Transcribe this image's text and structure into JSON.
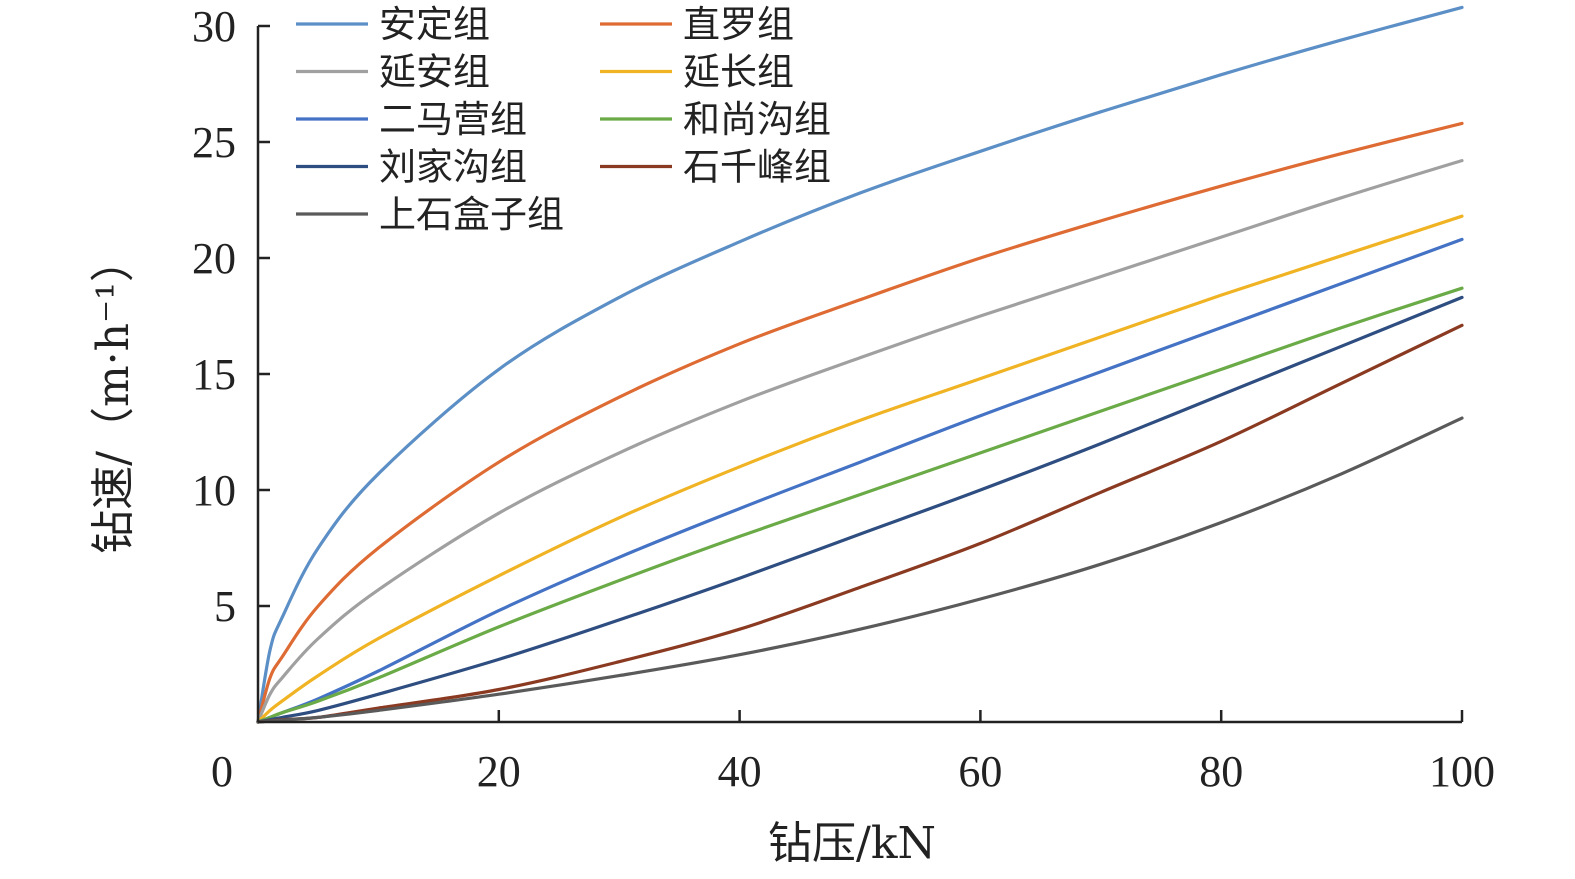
{
  "chart_data": {
    "type": "line",
    "xlabel": "钻压/kN",
    "ylabel": "钻速/（m·h⁻¹）",
    "xlim": [
      0,
      100
    ],
    "ylim": [
      0,
      30
    ],
    "x_ticks": [
      "0",
      "20",
      "40",
      "60",
      "80",
      "100"
    ],
    "y_ticks": [
      "5",
      "10",
      "15",
      "20",
      "25",
      "30"
    ],
    "grid": false,
    "legend_position": "top-left",
    "x": [
      0,
      1,
      2,
      5,
      10,
      20,
      30,
      40,
      50,
      60,
      70,
      80,
      90,
      100
    ],
    "series": [
      {
        "name": "安定组",
        "color": "#5b8fc6",
        "values": [
          0,
          3.1,
          4.5,
          7.5,
          10.7,
          15.2,
          18.3,
          20.7,
          22.8,
          24.6,
          26.3,
          27.9,
          29.4,
          30.8
        ]
      },
      {
        "name": "直罗组",
        "color": "#de6b33",
        "values": [
          0,
          1.9,
          2.8,
          5.0,
          7.5,
          11.2,
          14.0,
          16.3,
          18.2,
          20.0,
          21.6,
          23.1,
          24.5,
          25.8
        ]
      },
      {
        "name": "延安组",
        "color": "#a0a0a0",
        "values": [
          0,
          1.2,
          1.9,
          3.6,
          5.7,
          9.0,
          11.6,
          13.8,
          15.7,
          17.5,
          19.2,
          20.9,
          22.6,
          24.2
        ]
      },
      {
        "name": "延长组",
        "color": "#f0b323",
        "values": [
          0,
          0.5,
          0.9,
          2.0,
          3.6,
          6.3,
          8.8,
          11.0,
          13.0,
          14.8,
          16.6,
          18.4,
          20.1,
          21.8
        ]
      },
      {
        "name": "二马营组",
        "color": "#4472c4",
        "values": [
          0,
          0.2,
          0.4,
          1.0,
          2.2,
          4.8,
          7.1,
          9.2,
          11.2,
          13.2,
          15.1,
          17.0,
          18.9,
          20.8
        ]
      },
      {
        "name": "和尚沟组",
        "color": "#6aaa47",
        "values": [
          0,
          0.2,
          0.4,
          0.9,
          1.9,
          4.1,
          6.1,
          8.0,
          9.8,
          11.6,
          13.4,
          15.2,
          17.0,
          18.7
        ]
      },
      {
        "name": "刘家沟组",
        "color": "#2e4d80",
        "values": [
          0,
          0.1,
          0.2,
          0.5,
          1.2,
          2.7,
          4.4,
          6.2,
          8.1,
          10.0,
          12.0,
          14.1,
          16.2,
          18.3
        ]
      },
      {
        "name": "石千峰组",
        "color": "#8b3a22",
        "values": [
          0,
          0.05,
          0.1,
          0.2,
          0.6,
          1.4,
          2.6,
          4.0,
          5.8,
          7.7,
          9.9,
          12.1,
          14.6,
          17.1
        ]
      },
      {
        "name": "上石盒子组",
        "color": "#5a5a5a",
        "values": [
          0,
          0.04,
          0.08,
          0.2,
          0.5,
          1.2,
          2.0,
          2.9,
          4.0,
          5.3,
          6.8,
          8.6,
          10.7,
          13.1
        ]
      }
    ]
  }
}
